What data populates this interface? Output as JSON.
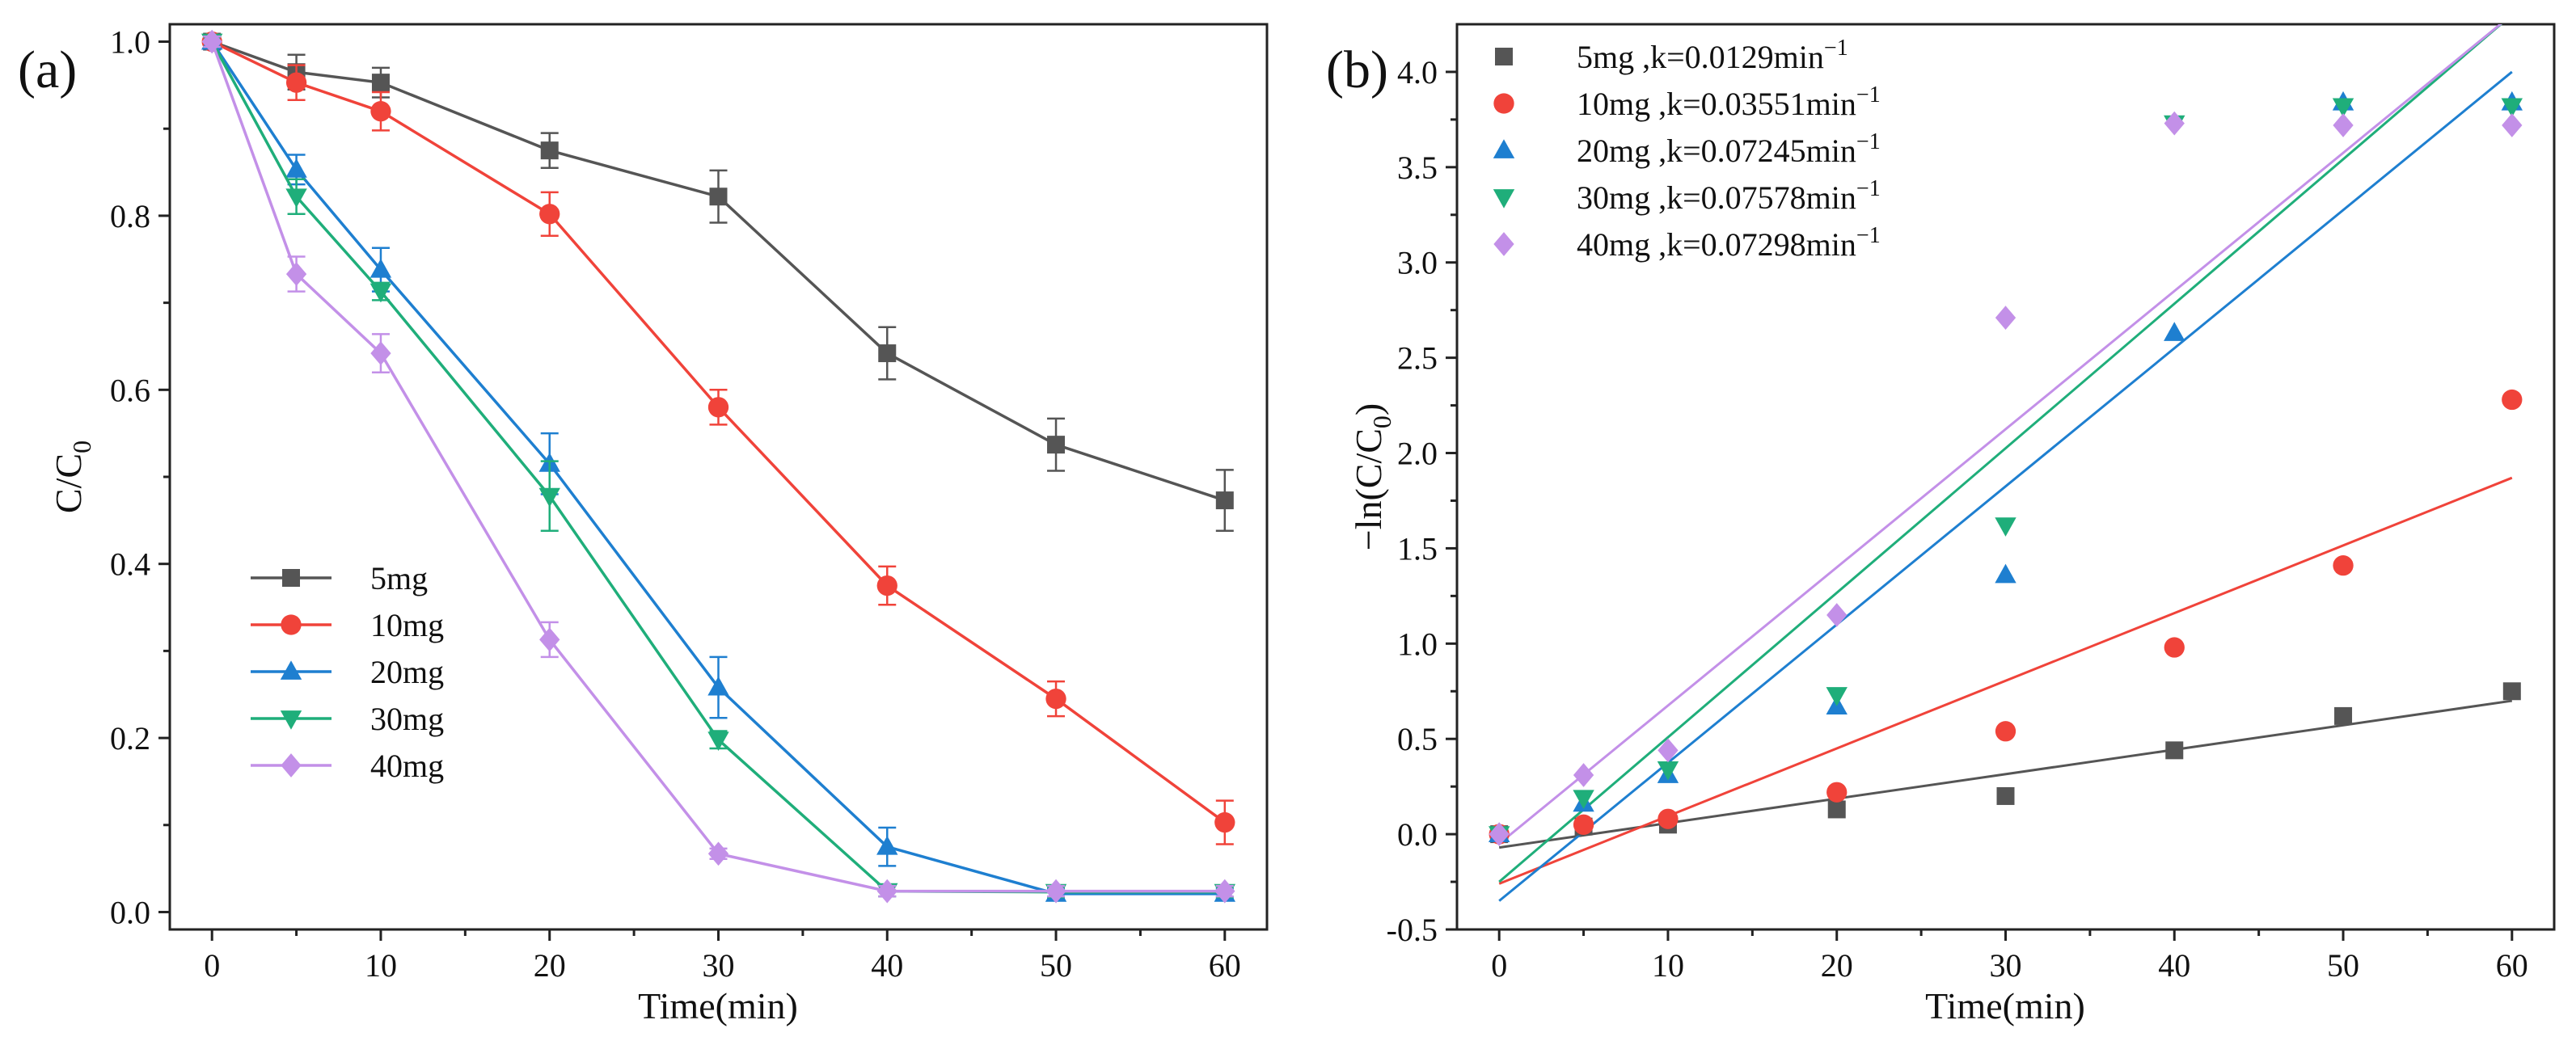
{
  "chart_data": [
    {
      "type": "line",
      "panel_label": "(a)",
      "xlabel": "Time(min)",
      "ylabel": "C/C",
      "ylabel_sub": "0",
      "xlim": [
        -2.5,
        62.5
      ],
      "ylim": [
        -0.02,
        1.02
      ],
      "xticks": [
        "0",
        "10",
        "20",
        "30",
        "40",
        "50",
        "60"
      ],
      "yticks": [
        "0.0",
        "0.2",
        "0.4",
        "0.6",
        "0.8",
        "1.0"
      ],
      "x": [
        0,
        5,
        10,
        20,
        30,
        40,
        50,
        60
      ],
      "legend_position": "bottom-left",
      "error_bars": true,
      "series": [
        {
          "name": "5mg",
          "color": "#555555",
          "marker": "square",
          "values": [
            1.0,
            0.965,
            0.953,
            0.875,
            0.822,
            0.642,
            0.537,
            0.473
          ],
          "errors": [
            0.006,
            0.02,
            0.017,
            0.02,
            0.03,
            0.03,
            0.03,
            0.035
          ]
        },
        {
          "name": "10mg",
          "color": "#f0433a",
          "marker": "circle",
          "values": [
            1.0,
            0.953,
            0.92,
            0.802,
            0.58,
            0.375,
            0.245,
            0.103
          ],
          "errors": [
            0.006,
            0.02,
            0.022,
            0.025,
            0.02,
            0.022,
            0.02,
            0.025
          ]
        },
        {
          "name": "20mg",
          "color": "#1e7fd0",
          "marker": "triangle-up",
          "values": [
            1.0,
            0.853,
            0.738,
            0.515,
            0.258,
            0.075,
            0.021,
            0.021
          ],
          "errors": [
            0.006,
            0.017,
            0.025,
            0.035,
            0.035,
            0.022,
            0.006,
            0.006
          ]
        },
        {
          "name": "30mg",
          "color": "#1fae7a",
          "marker": "triangle-down",
          "values": [
            1.0,
            0.822,
            0.713,
            0.478,
            0.198,
            0.024,
            0.023,
            0.023
          ],
          "errors": [
            0.006,
            0.02,
            0.01,
            0.04,
            0.01,
            0.006,
            0.006,
            0.006
          ]
        },
        {
          "name": "40mg",
          "color": "#c390e8",
          "marker": "diamond",
          "values": [
            1.0,
            0.733,
            0.642,
            0.313,
            0.067,
            0.024,
            0.024,
            0.024
          ],
          "errors": [
            0.006,
            0.02,
            0.022,
            0.02,
            0.006,
            0.006,
            0.006,
            0.006
          ]
        }
      ]
    },
    {
      "type": "scatter",
      "panel_label": "(b)",
      "xlabel": "Time(min)",
      "ylabel": "−ln(C/C",
      "ylabel_sub": "0",
      "ylabel_close": ")",
      "xlim": [
        -2.5,
        62.5
      ],
      "ylim": [
        -0.5,
        4.25
      ],
      "xticks": [
        "0",
        "10",
        "20",
        "30",
        "40",
        "50",
        "60"
      ],
      "yticks": [
        "-0.5",
        "0.0",
        "0.5",
        "1.0",
        "1.5",
        "2.0",
        "2.5",
        "3.0",
        "3.5",
        "4.0"
      ],
      "x": [
        0,
        5,
        10,
        20,
        30,
        40,
        50,
        60
      ],
      "legend_position": "top-left",
      "fit_lines": true,
      "series": [
        {
          "name": "5mg  ,k=0.0129min",
          "name_sup": "−1",
          "color": "#555555",
          "marker": "square",
          "values": [
            0.0,
            0.04,
            0.05,
            0.13,
            0.2,
            0.44,
            0.62,
            0.75
          ],
          "fit": [
            [
              0,
              -0.07
            ],
            [
              60,
              0.7
            ]
          ]
        },
        {
          "name": "10mg ,k=0.03551min",
          "name_sup": "−1",
          "color": "#f0433a",
          "marker": "circle",
          "values": [
            0.0,
            0.05,
            0.08,
            0.22,
            0.54,
            0.98,
            1.41,
            2.28
          ],
          "fit": [
            [
              0,
              -0.26
            ],
            [
              60,
              1.87
            ]
          ]
        },
        {
          "name": "20mg ,k=0.07245min",
          "name_sup": "−1",
          "color": "#1e7fd0",
          "marker": "triangle-up",
          "values": [
            0.0,
            0.16,
            0.31,
            0.67,
            1.36,
            2.63,
            3.84,
            3.84
          ],
          "fit": [
            [
              0,
              -0.35
            ],
            [
              60,
              4.0
            ]
          ]
        },
        {
          "name": "30mg ,k=0.07578min",
          "name_sup": "−1",
          "color": "#1fae7a",
          "marker": "triangle-down",
          "values": [
            0.0,
            0.19,
            0.34,
            0.73,
            1.62,
            3.73,
            3.82,
            3.82
          ],
          "fit": [
            [
              0,
              -0.25
            ],
            [
              60,
              4.3
            ]
          ]
        },
        {
          "name": "40mg ,k=0.07298min",
          "name_sup": "−1",
          "color": "#c390e8",
          "marker": "diamond",
          "values": [
            0.0,
            0.31,
            0.44,
            1.15,
            2.71,
            3.73,
            3.72,
            3.72
          ],
          "fit": [
            [
              0,
              -0.05
            ],
            [
              60,
              4.3
            ]
          ]
        }
      ]
    }
  ]
}
